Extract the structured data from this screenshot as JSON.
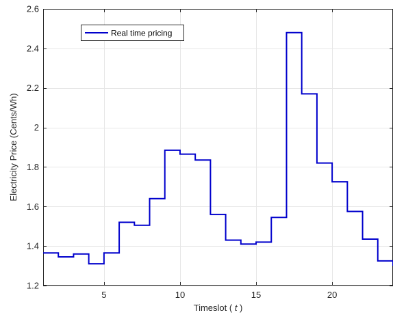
{
  "chart_data": {
    "type": "line",
    "step": true,
    "xlabel": "Timeslot ( t )",
    "xlabel_parts": {
      "prefix": "Timeslot ( ",
      "var": "t",
      "suffix": " )"
    },
    "ylabel": "Electricity Price (Cents/Wh)",
    "xlim": [
      1,
      24
    ],
    "ylim": [
      1.2,
      2.6
    ],
    "xticks": [
      5,
      10,
      15,
      20
    ],
    "yticks": [
      1.2,
      1.4,
      1.6,
      1.8,
      2.0,
      2.2,
      2.4,
      2.6
    ],
    "ytick_labels": [
      "1.2",
      "1.4",
      "1.6",
      "1.8",
      "2",
      "2.2",
      "2.4",
      "2.6"
    ],
    "grid": true,
    "legend": {
      "position": "top-left"
    },
    "series": [
      {
        "name": "Real time pricing",
        "color": "#0000cc",
        "x": [
          1,
          2,
          3,
          4,
          5,
          6,
          7,
          8,
          9,
          10,
          11,
          12,
          13,
          14,
          15,
          16,
          17,
          18,
          19,
          20,
          21,
          22,
          23,
          24
        ],
        "values": [
          1.365,
          1.345,
          1.36,
          1.31,
          1.365,
          1.52,
          1.505,
          1.64,
          1.885,
          1.865,
          1.835,
          1.56,
          1.43,
          1.41,
          1.42,
          1.545,
          2.48,
          2.17,
          1.82,
          1.725,
          1.575,
          1.435,
          1.325,
          1.3
        ]
      }
    ]
  }
}
